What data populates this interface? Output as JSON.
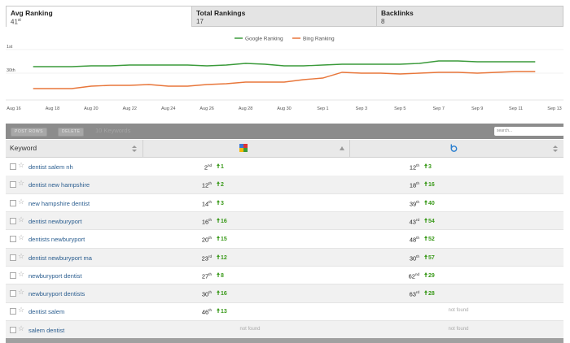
{
  "tabs": [
    {
      "title": "Avg Ranking",
      "value": 41,
      "suffix": "st"
    },
    {
      "title": "Total Rankings",
      "value": 17
    },
    {
      "title": "Backlinks",
      "value": 8
    }
  ],
  "chart_data": {
    "type": "line",
    "x": [
      "Aug 16",
      null,
      "Aug 18",
      null,
      "Aug 20",
      null,
      "Aug 22",
      null,
      "Aug 24",
      null,
      "Aug 26",
      null,
      "Aug 28",
      null,
      "Aug 30",
      null,
      "Sep 1",
      null,
      "Sep 3",
      null,
      "Sep 5",
      null,
      "Sep 7",
      null,
      "Sep 9",
      null,
      "Sep 11",
      null,
      "Sep 13"
    ],
    "series": [
      {
        "name": "Google Ranking",
        "color": "#3a9a3a",
        "values": [
          null,
          22,
          22,
          22,
          21,
          21,
          20,
          20,
          20,
          20,
          21,
          20,
          18,
          19,
          21,
          21,
          20,
          19,
          19,
          19,
          19,
          18,
          15,
          15,
          16,
          16,
          16,
          16,
          null
        ]
      },
      {
        "name": "Bing Ranking",
        "color": "#e8763a",
        "values": [
          null,
          49,
          49,
          49,
          46,
          45,
          45,
          44,
          46,
          46,
          44,
          43,
          41,
          41,
          41,
          38,
          36,
          29,
          30,
          30,
          31,
          30,
          29,
          29,
          30,
          29,
          28,
          28,
          null
        ]
      }
    ],
    "ylim": [
      60,
      1
    ],
    "yticks": [
      {
        "value": 1,
        "label": "1st"
      },
      {
        "value": 30,
        "label": "30th"
      }
    ],
    "grid": true
  },
  "toolbar": {
    "buttons": [
      "POST ROWS",
      "DELETE"
    ],
    "count": "10 Keywords",
    "search_placeholder": "search..."
  },
  "table": {
    "header": "Keyword",
    "rows": [
      {
        "keyword": "dentist salem nh",
        "google": {
          "rank": 2,
          "suffix": "nd",
          "change": 1
        },
        "bing": {
          "rank": 12,
          "suffix": "th",
          "change": 3
        }
      },
      {
        "keyword": "dentist new hampshire",
        "google": {
          "rank": 12,
          "suffix": "th",
          "change": 2
        },
        "bing": {
          "rank": 18,
          "suffix": "th",
          "change": 16
        }
      },
      {
        "keyword": "new hampshire dentist",
        "google": {
          "rank": 14,
          "suffix": "th",
          "change": 3
        },
        "bing": {
          "rank": 39,
          "suffix": "th",
          "change": 40
        }
      },
      {
        "keyword": "dentist newburyport",
        "google": {
          "rank": 16,
          "suffix": "th",
          "change": 16
        },
        "bing": {
          "rank": 43,
          "suffix": "rd",
          "change": 54
        }
      },
      {
        "keyword": "dentists newburyport",
        "google": {
          "rank": 20,
          "suffix": "th",
          "change": 15
        },
        "bing": {
          "rank": 48,
          "suffix": "th",
          "change": 52
        }
      },
      {
        "keyword": "dentist newburyport ma",
        "google": {
          "rank": 23,
          "suffix": "rd",
          "change": 12
        },
        "bing": {
          "rank": 30,
          "suffix": "th",
          "change": 57
        }
      },
      {
        "keyword": "newburyport dentist",
        "google": {
          "rank": 27,
          "suffix": "th",
          "change": 8
        },
        "bing": {
          "rank": 62,
          "suffix": "nd",
          "change": 29
        }
      },
      {
        "keyword": "newburyport dentists",
        "google": {
          "rank": 30,
          "suffix": "th",
          "change": 16
        },
        "bing": {
          "rank": 63,
          "suffix": "rd",
          "change": 28
        }
      },
      {
        "keyword": "dentist salem",
        "google": {
          "rank": 46,
          "suffix": "th",
          "change": 13
        },
        "bing": {
          "status": "not found"
        }
      },
      {
        "keyword": "salem dentist",
        "google": {
          "status": "not found"
        },
        "bing": {
          "status": "not found"
        }
      }
    ]
  }
}
